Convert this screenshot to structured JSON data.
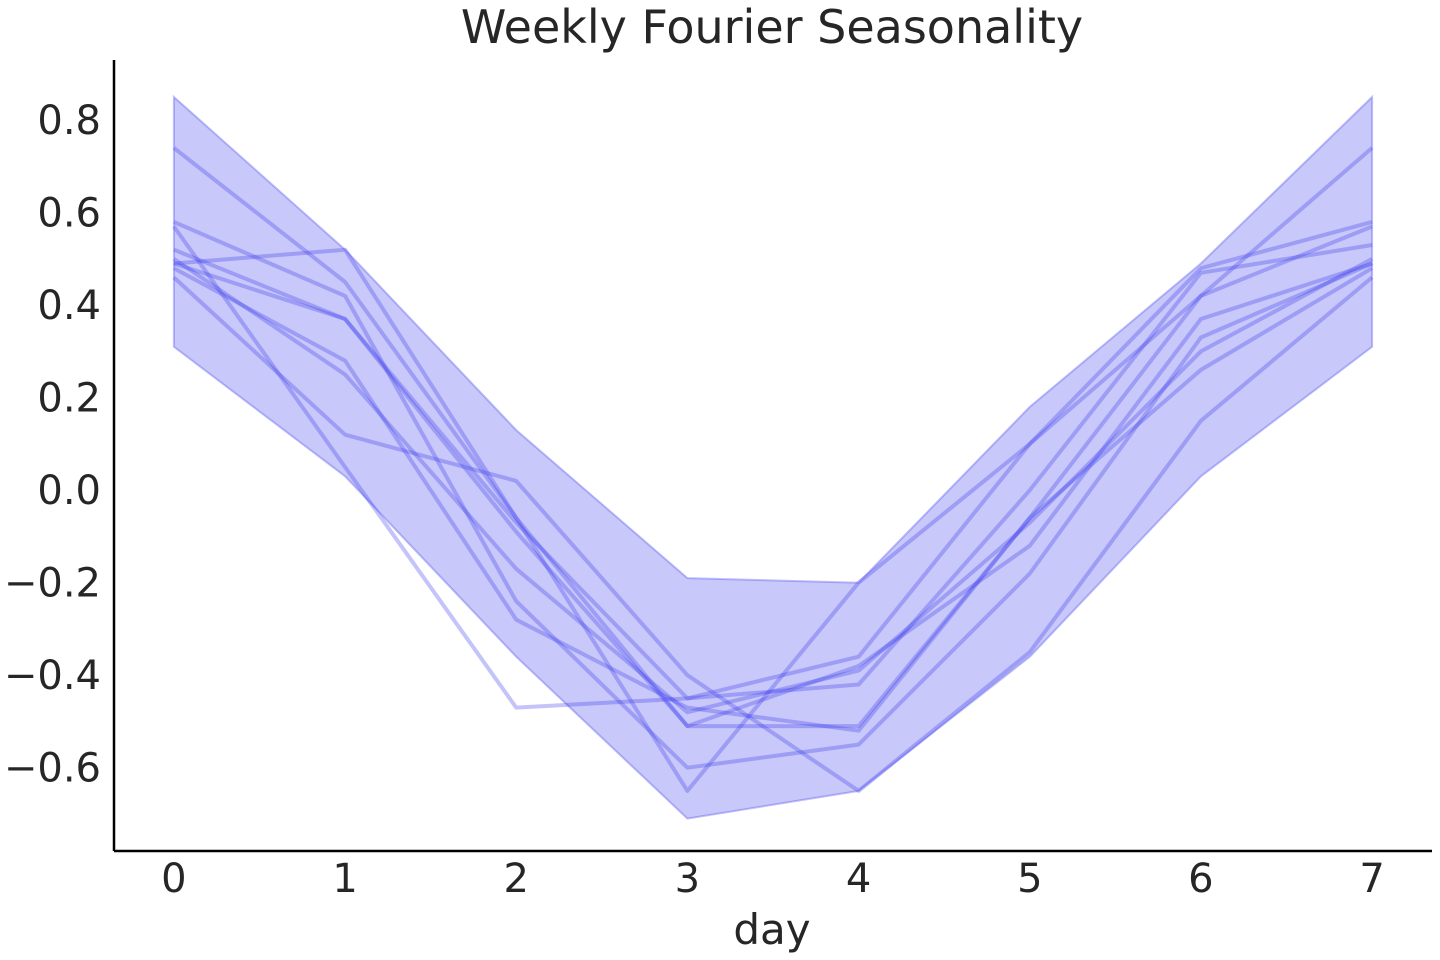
{
  "chart_data": {
    "type": "line",
    "title": "Weekly Fourier Seasonality",
    "xlabel": "day",
    "ylabel": "",
    "xlim": [
      -0.35,
      7.35
    ],
    "ylim": [
      -0.78,
      0.93
    ],
    "x_ticks": [
      0,
      1,
      2,
      3,
      4,
      5,
      6,
      7
    ],
    "y_ticks": [
      0.8,
      0.6,
      0.4,
      0.2,
      0.0,
      -0.2,
      -0.4,
      -0.6
    ],
    "y_tick_labels": [
      "0.8",
      "0.6",
      "0.4",
      "0.2",
      "0.0",
      "−0.2",
      "−0.4",
      "−0.6"
    ],
    "grid": false,
    "colors": {
      "line": "#3b3bf0",
      "band": "#4a4af0",
      "axis": "#000000"
    },
    "band": {
      "x": [
        0,
        1,
        2,
        3,
        4,
        5,
        6,
        7
      ],
      "upper": [
        0.85,
        0.52,
        0.13,
        -0.19,
        -0.2,
        0.18,
        0.49,
        0.85
      ],
      "lower": [
        0.31,
        0.03,
        -0.36,
        -0.71,
        -0.65,
        -0.36,
        0.03,
        0.31
      ]
    },
    "series": [
      {
        "x": [
          0,
          1,
          2,
          3,
          4,
          5,
          6,
          7
        ],
        "values": [
          0.49,
          0.52,
          -0.06,
          -0.65,
          -0.2,
          0.1,
          0.48,
          0.58
        ]
      },
      {
        "x": [
          0,
          1,
          2,
          3,
          4,
          5,
          6,
          7
        ],
        "values": [
          0.74,
          0.45,
          -0.06,
          -0.51,
          -0.51,
          -0.06,
          0.42,
          0.74
        ]
      },
      {
        "x": [
          0,
          1,
          2,
          3,
          4,
          5,
          6,
          7
        ],
        "values": [
          0.58,
          0.42,
          -0.24,
          -0.6,
          -0.55,
          -0.18,
          0.33,
          0.49
        ]
      },
      {
        "x": [
          0,
          1,
          2,
          3,
          4,
          5,
          6,
          7
        ],
        "values": [
          0.52,
          0.37,
          -0.09,
          -0.51,
          -0.38,
          -0.12,
          0.37,
          0.49
        ]
      },
      {
        "x": [
          0,
          1,
          2,
          3,
          4,
          5,
          6,
          7
        ],
        "values": [
          0.48,
          0.28,
          -0.28,
          -0.47,
          -0.52,
          -0.06,
          0.26,
          0.48
        ]
      },
      {
        "x": [
          0,
          1,
          2,
          3,
          4,
          5,
          6,
          7
        ],
        "values": [
          0.5,
          0.25,
          -0.17,
          -0.48,
          -0.39,
          -0.07,
          0.3,
          0.5
        ]
      },
      {
        "x": [
          0,
          1,
          2,
          3,
          4,
          5,
          6,
          7
        ],
        "values": [
          0.46,
          0.12,
          0.02,
          -0.4,
          -0.65,
          -0.35,
          0.15,
          0.46
        ]
      },
      {
        "x": [
          0,
          1,
          2,
          3,
          4,
          5,
          6,
          7
        ],
        "values": [
          0.57,
          0.05,
          -0.47,
          -0.45,
          -0.36,
          0.1,
          0.42,
          0.57
        ]
      },
      {
        "x": [
          0,
          1,
          2,
          3,
          4,
          5,
          6,
          7
        ],
        "values": [
          0.49,
          0.37,
          -0.07,
          -0.45,
          -0.42,
          0.0,
          0.47,
          0.53
        ]
      }
    ]
  }
}
